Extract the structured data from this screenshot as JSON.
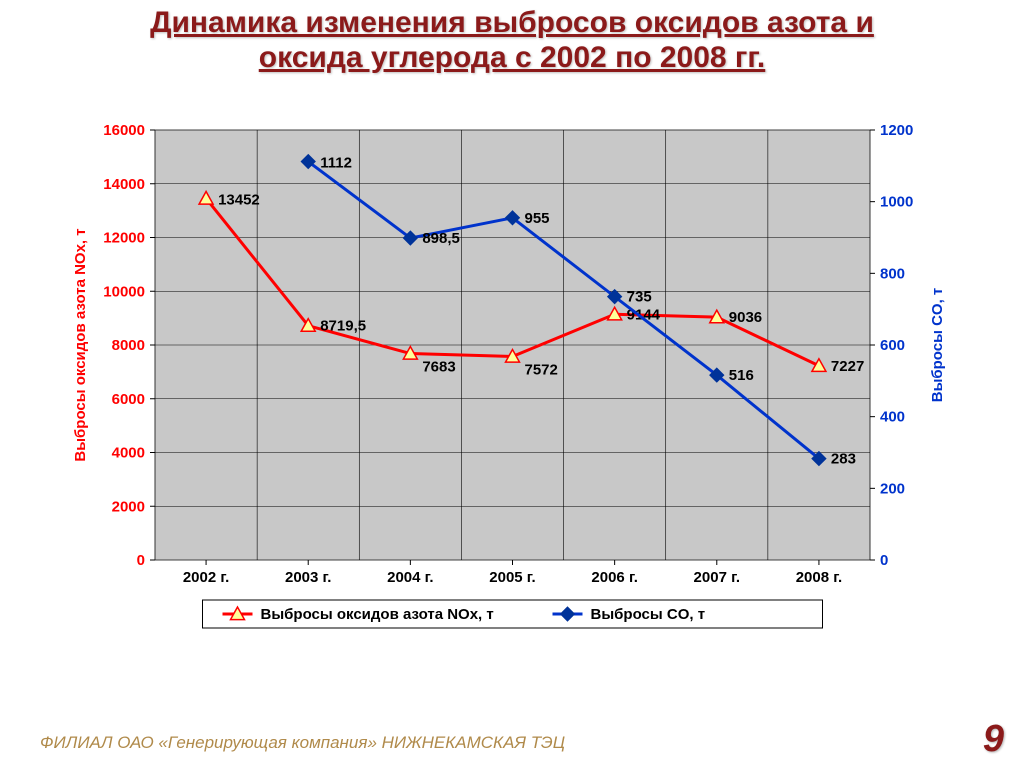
{
  "slide": {
    "background_color": "#ffffff",
    "title": {
      "line1": "Динамика изменения выбросов оксидов азота и",
      "line2": "оксида углерода с 2002 по 2008 гг.",
      "color": "#8b1a1a",
      "fontsize": 30
    },
    "footer": {
      "text": "ФИЛИАЛ ОАО «Генерирующая компания» НИЖНЕКАМСКАЯ ТЭЦ",
      "color": "#b08a4a",
      "fontsize": 17
    },
    "pagenum": {
      "text": "9",
      "color": "#8b1a1a",
      "fontsize": 38
    }
  },
  "chart": {
    "type": "line",
    "plot_area_bg": "#c8c8c8",
    "border_color": "#808080",
    "grid_color": "#000000",
    "categories": [
      "2002 г.",
      "2003 г.",
      "2004 г.",
      "2005 г.",
      "2006 г.",
      "2007 г.",
      "2008 г."
    ],
    "x_tick_labels": [
      "2002 г.",
      "2003 г.",
      "2004 г.",
      "2005 г.",
      "2006 г.",
      "2007 г.",
      "2008 г."
    ],
    "x_tick_color": "#000000",
    "x_tick_fontsize": 15,
    "axis_left": {
      "label": "Выбросы оксидов азота NOx, т",
      "label_color": "#ff0000",
      "label_fontsize": 15,
      "min": 0,
      "max": 16000,
      "step": 2000,
      "tick_color": "#ff0000",
      "tick_fontsize": 15
    },
    "axis_right": {
      "label": "Выбросы CO, т",
      "label_color": "#0033cc",
      "label_fontsize": 15,
      "min": 0,
      "max": 1200,
      "step": 200,
      "tick_color": "#0033cc",
      "tick_fontsize": 15
    },
    "series": [
      {
        "name": "Выбросы оксидов азота NOx, т",
        "axis": "left",
        "color": "#ff0000",
        "line_width": 3,
        "marker": "triangle",
        "marker_fill": "#ffff99",
        "marker_stroke": "#ff0000",
        "marker_size": 7,
        "data_label_color": "#000000",
        "data_label_fontsize": 15,
        "values": [
          13452,
          8719.5,
          7683,
          7572,
          9144,
          9036,
          7227
        ],
        "data_labels": [
          "13452",
          "8719,5",
          "7683",
          "7572",
          "9144",
          "9036",
          "7227"
        ]
      },
      {
        "name": "Выбросы CO, т",
        "axis": "right",
        "color": "#0033cc",
        "line_width": 3,
        "marker": "diamond",
        "marker_fill": "#003399",
        "marker_stroke": "#003399",
        "marker_size": 7,
        "data_label_color": "#000000",
        "data_label_fontsize": 15,
        "values": [
          null,
          1112,
          898.5,
          955,
          735,
          516,
          283
        ],
        "data_labels": [
          null,
          "1112",
          "898,5",
          "955",
          "735",
          "516",
          "283"
        ]
      }
    ],
    "legend": {
      "border_color": "#000000",
      "bg": "#ffffff",
      "fontsize": 15,
      "items": [
        "Выбросы оксидов азота NOx, т",
        "Выбросы CO, т"
      ]
    }
  }
}
